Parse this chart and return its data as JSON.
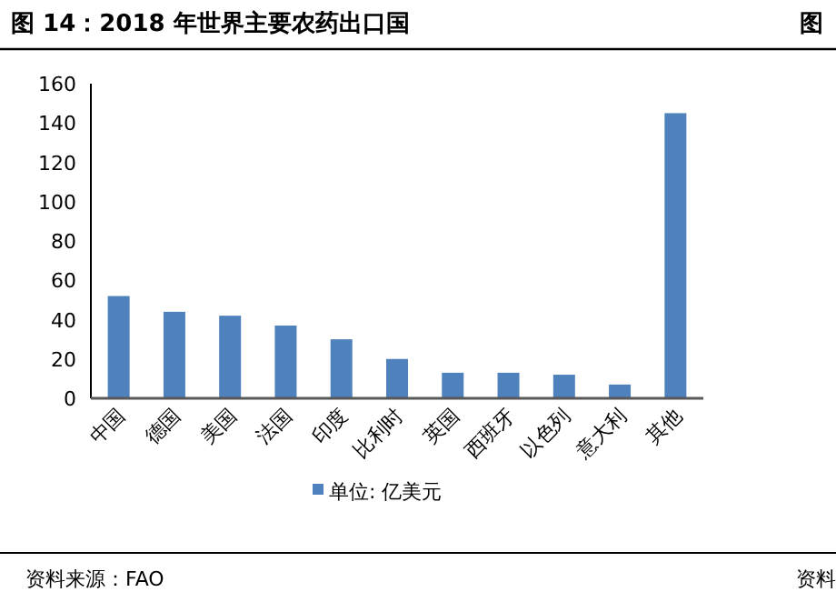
{
  "chart_data": {
    "type": "bar",
    "title": "图 14：2018 年世界主要农药出口国",
    "categories": [
      "中国",
      "德国",
      "美国",
      "法国",
      "印度",
      "比利时",
      "英国",
      "西班牙",
      "以色列",
      "意大利",
      "其他"
    ],
    "series": [
      {
        "name": "单位: 亿美元",
        "color": "#4f81bd",
        "values": [
          52,
          44,
          42,
          37,
          30,
          20,
          13,
          13,
          12,
          7,
          145
        ]
      }
    ],
    "ylim": [
      0,
      160
    ],
    "yticks": [
      0,
      20,
      40,
      60,
      80,
      100,
      120,
      140,
      160
    ],
    "grid": false,
    "legend": "bottom",
    "annotations": [
      "资料来源：FAO",
      "图",
      "资料"
    ]
  }
}
